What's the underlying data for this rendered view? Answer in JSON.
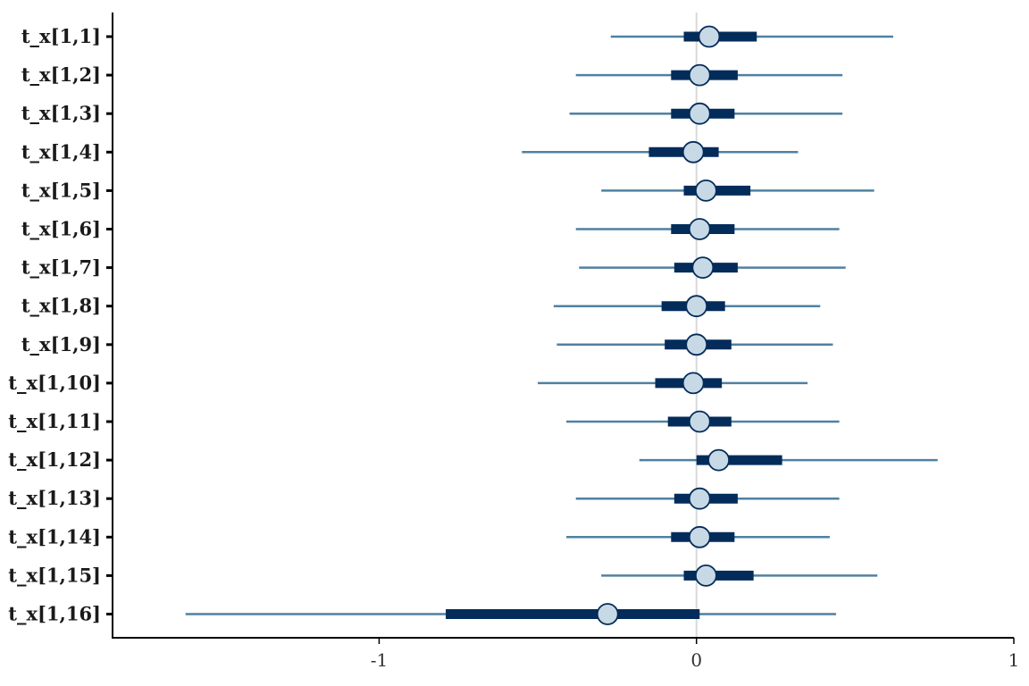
{
  "chart_data": {
    "type": "interval",
    "categories": [
      "t_x[1,1]",
      "t_x[1,2]",
      "t_x[1,3]",
      "t_x[1,4]",
      "t_x[1,5]",
      "t_x[1,6]",
      "t_x[1,7]",
      "t_x[1,8]",
      "t_x[1,9]",
      "t_x[1,10]",
      "t_x[1,11]",
      "t_x[1,12]",
      "t_x[1,13]",
      "t_x[1,14]",
      "t_x[1,15]",
      "t_x[1,16]"
    ],
    "points": [
      {
        "median": 0.04,
        "inner": [
          -0.04,
          0.19
        ],
        "outer": [
          -0.27,
          0.62
        ]
      },
      {
        "median": 0.01,
        "inner": [
          -0.08,
          0.13
        ],
        "outer": [
          -0.38,
          0.46
        ]
      },
      {
        "median": 0.01,
        "inner": [
          -0.08,
          0.12
        ],
        "outer": [
          -0.4,
          0.46
        ]
      },
      {
        "median": -0.01,
        "inner": [
          -0.15,
          0.07
        ],
        "outer": [
          -0.55,
          0.32
        ]
      },
      {
        "median": 0.03,
        "inner": [
          -0.04,
          0.17
        ],
        "outer": [
          -0.3,
          0.56
        ]
      },
      {
        "median": 0.01,
        "inner": [
          -0.08,
          0.12
        ],
        "outer": [
          -0.38,
          0.45
        ]
      },
      {
        "median": 0.02,
        "inner": [
          -0.07,
          0.13
        ],
        "outer": [
          -0.37,
          0.47
        ]
      },
      {
        "median": 0.0,
        "inner": [
          -0.11,
          0.09
        ],
        "outer": [
          -0.45,
          0.39
        ]
      },
      {
        "median": 0.0,
        "inner": [
          -0.1,
          0.11
        ],
        "outer": [
          -0.44,
          0.43
        ]
      },
      {
        "median": -0.01,
        "inner": [
          -0.13,
          0.08
        ],
        "outer": [
          -0.5,
          0.35
        ]
      },
      {
        "median": 0.01,
        "inner": [
          -0.09,
          0.11
        ],
        "outer": [
          -0.41,
          0.45
        ]
      },
      {
        "median": 0.07,
        "inner": [
          0.0,
          0.27
        ],
        "outer": [
          -0.18,
          0.76
        ]
      },
      {
        "median": 0.01,
        "inner": [
          -0.07,
          0.13
        ],
        "outer": [
          -0.38,
          0.45
        ]
      },
      {
        "median": 0.01,
        "inner": [
          -0.08,
          0.12
        ],
        "outer": [
          -0.41,
          0.42
        ]
      },
      {
        "median": 0.03,
        "inner": [
          -0.04,
          0.18
        ],
        "outer": [
          -0.3,
          0.57
        ]
      },
      {
        "median": -0.28,
        "inner": [
          -0.79,
          0.01
        ],
        "outer": [
          -1.61,
          0.44
        ]
      }
    ],
    "xlim": [
      -1.84,
      1.0
    ],
    "xticks": [
      -1,
      0,
      1
    ],
    "xtick_labels": [
      "-1",
      "0",
      "1"
    ],
    "reference_line": 0,
    "title": "",
    "xlabel": "",
    "ylabel": "",
    "grid": false,
    "colors": {
      "outer_interval": "#4f81a1",
      "inner_interval": "#032c5a",
      "point_fill": "#c8d9e6",
      "point_stroke": "#032c5a",
      "reference_line": "#d9d9d9",
      "axis": "#000000"
    }
  }
}
